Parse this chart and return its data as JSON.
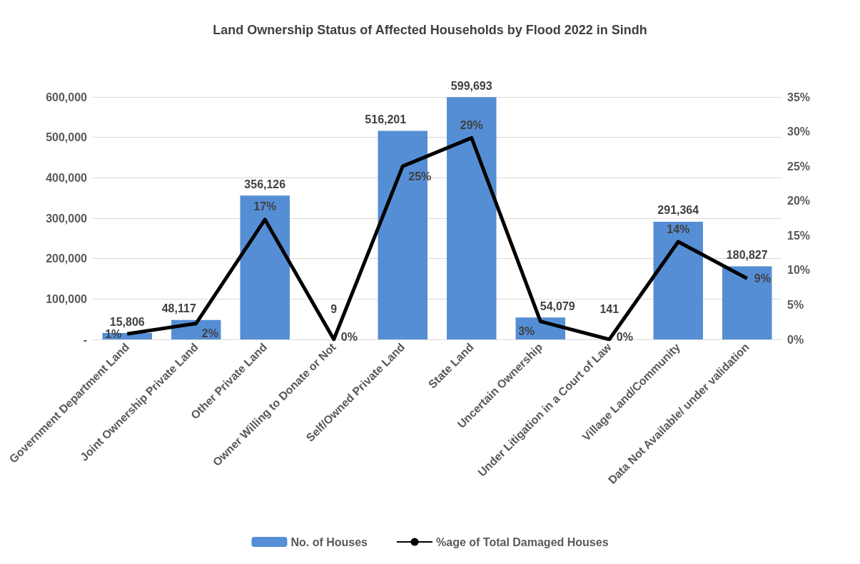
{
  "chart_data": {
    "type": "bar",
    "title": "Land Ownership Status of Affected Households by Flood 2022 in Sindh",
    "categories": [
      "Government Department Land",
      "Joint Ownership Private Land",
      "Other Private Land",
      "Owner Willing to Donate or Not",
      "Self/Owned Private Land",
      "State Land",
      "Uncertain Ownership",
      "Under Litigation in a Court of Law",
      "Village Land/Community",
      "Data Not Available/ under validation"
    ],
    "series": [
      {
        "name": "No. of Houses",
        "color": "#558ed5",
        "values": [
          15806,
          48117,
          356126,
          9,
          516201,
          599693,
          54079,
          141,
          291364,
          180827
        ],
        "value_labels": [
          "15,806",
          "48,117",
          "356,126",
          "9",
          "516,201",
          "599,693",
          "54,079",
          "141",
          "291,364",
          "180,827"
        ]
      },
      {
        "name": "%age of Total Damaged Houses",
        "type": "line",
        "axis": "y2",
        "color": "#000000",
        "values": [
          0.8,
          2.3,
          17.3,
          0,
          25,
          29.1,
          2.6,
          0,
          14.1,
          8.8
        ],
        "value_labels": [
          "1%",
          "2%",
          "17%",
          "0%",
          "25%",
          "29%",
          "3%",
          "0%",
          "14%",
          "9%"
        ]
      }
    ],
    "ylim": [
      0,
      600000
    ],
    "yticks": [
      {
        "value": 0,
        "label": "-"
      },
      {
        "value": 100000,
        "label": "100,000"
      },
      {
        "value": 200000,
        "label": "200,000"
      },
      {
        "value": 300000,
        "label": "300,000"
      },
      {
        "value": 400000,
        "label": "400,000"
      },
      {
        "value": 500000,
        "label": "500,000"
      },
      {
        "value": 600000,
        "label": "600,000"
      }
    ],
    "y2lim": [
      0,
      35
    ],
    "y2ticks": [
      {
        "value": 0,
        "label": "0%"
      },
      {
        "value": 5,
        "label": "5%"
      },
      {
        "value": 10,
        "label": "10%"
      },
      {
        "value": 15,
        "label": "15%"
      },
      {
        "value": 20,
        "label": "20%"
      },
      {
        "value": 25,
        "label": "25%"
      },
      {
        "value": 30,
        "label": "30%"
      },
      {
        "value": 35,
        "label": "35%"
      }
    ],
    "grid": "y",
    "legend": "bottom",
    "marker": "none",
    "line_style": "solid"
  }
}
